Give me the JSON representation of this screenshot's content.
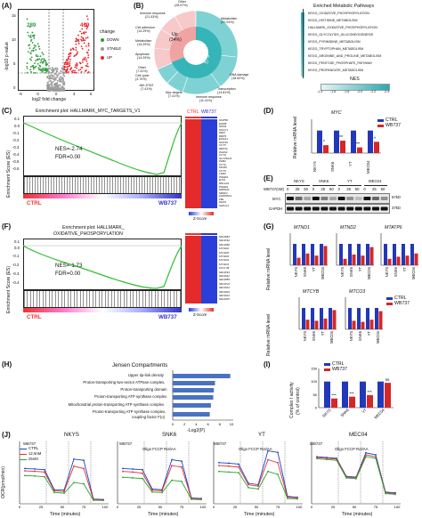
{
  "panel_letters": {
    "A": "(A)",
    "B": "(B)",
    "C": "(C)",
    "D": "(D)",
    "E": "(E)",
    "F": "(F)",
    "G": "(G)",
    "H": "(H)",
    "I": "(I)",
    "J": "(J)"
  },
  "volcano": {
    "ylabel": "-log10 p-value",
    "xlabel": "log2 fold change",
    "down_count": "289",
    "up_count": "469",
    "legend_title": "change",
    "legend": [
      "DOWN",
      "STABLE",
      "UP"
    ],
    "xticks": [
      "-6",
      "-3",
      "0",
      "3",
      "6"
    ],
    "yticks": [
      "0",
      "5",
      "10",
      "15"
    ],
    "colors": {
      "down": "#2e9c3a",
      "stable": "#9a9a9a",
      "up": "#e8262a"
    }
  },
  "donut": {
    "inner": [
      {
        "name": "Up",
        "pct": "(34%)"
      },
      {
        "name": "Down",
        "pct": "(66%)"
      }
    ],
    "outer_labels": [
      {
        "name": "Other",
        "pct": "(28.57%)"
      },
      {
        "name": "Immune response",
        "pct": "(21.43%)"
      },
      {
        "name": "Cell adhesion",
        "pct": "(14.29%)"
      },
      {
        "name": "Metabolism",
        "pct": "(14.29%)"
      },
      {
        "name": "Apoptosis",
        "pct": "(14.29%)"
      },
      {
        "name": "Other",
        "pct": "(7.41%)"
      },
      {
        "name": "Cell cycle",
        "pct": "(3.70%)"
      },
      {
        "name": "JAK-STAT",
        "pct": "(7.41%)"
      },
      {
        "name": "Myc targets",
        "pct": "(7.41%)"
      },
      {
        "name": "Metabolism",
        "pct": "(37.04%)"
      },
      {
        "name": "DNA damage",
        "pct": "(18.52%)"
      },
      {
        "name": "Transcription",
        "pct": "(14.81%)"
      },
      {
        "name": "Immune response",
        "pct": "(11.11%)"
      }
    ],
    "colors": {
      "up": "#f0a3a3",
      "down": "#35b5b8"
    }
  },
  "enriched": {
    "title": "Enriched Metabolic Pathways",
    "items": [
      "KEGG_OXIDATIVE_PHOSPHORYLATION",
      "KEGG_HISTIDINE_METABOLISM",
      "HALLMARK_OXIDATIVE_PHOSPHORYLATION",
      "KEGG_GLYCOLYSIS_GLUCONEOGENESIS",
      "KEGG_PYRIMIDINE_METABOLISM",
      "KEGG_TRYPTOPHAN_METABOLISM",
      "KEGG_ARGININE_AND_PROLINE_METABOLISM",
      "KEGG_PENTOSE_PHOSPHATE_PATHWAY",
      "KEGG_PROPANOATE_METABOLISM"
    ],
    "nes_label": "NES",
    "nes_ticks": [
      "-1.4",
      "-1.6",
      "-1.8",
      "-2.0",
      "-2.2",
      "-2.4"
    ]
  },
  "gsea_c": {
    "title": "Enrichment plot: HALLMARK_MYC_TARGETS_V1",
    "ylabel": "Enrichment Score (ES)",
    "nes": "NES=-2.74",
    "fdr": "FDR=0.00",
    "left": "CTRL",
    "right": "WB737",
    "yticks": [
      "0.1",
      "0.0",
      "-0.1",
      "-0.2",
      "-0.3",
      "-0.4",
      "-0.5",
      "-0.6"
    ]
  },
  "heat_c": {
    "header_ctrl": "CTRL",
    "header_wb": "WB737",
    "genes": [
      "NOP56",
      "EIF4B",
      "NPM1",
      "NOLC1",
      "SRM",
      "RRP9",
      "EIF4A1",
      "NOP16",
      "CCT7",
      "RRP12",
      "PA2G4",
      "CCT4",
      "SLC25A11",
      "PHB2",
      "CCT2",
      "MCM5",
      "CCT3",
      "LSM2",
      "PSMD1",
      "ETF1",
      "RSL1D1",
      "PSMD1",
      "IMPDH2",
      "SRSF2",
      "HNRNPA1",
      "FBL",
      "NHP2",
      "NAP1L1"
    ],
    "zscore": "Z-Score",
    "zticks": [
      "2",
      "0",
      "-2"
    ]
  },
  "gsea_f": {
    "title": "Enrichment plot: HALLMARK_",
    "title2": "OXIDATIVE_PHOSPORYLATION",
    "ylabel": "Enrichment Score (ES)",
    "nes": "NES=-1.73",
    "fdr": "FDR=0.00",
    "left": "CTRL",
    "right": "WB737",
    "yticks": [
      "0.1",
      "0.0",
      "-0.1",
      "-0.2",
      "-0.3",
      "-0.4"
    ]
  },
  "heat_f": {
    "genes": [
      "NDUFB1",
      "NDUFS2",
      "NDUFB2",
      "MT-ND2",
      "MT-ND5",
      "MT-ND3",
      "MT-ND4",
      "MT-ND1",
      "MT-CYB",
      "NDUFS1",
      "NDUFA2",
      "NDUFB5",
      "NDUFV2",
      "NDUFA4",
      "NDUFA9",
      "NDUFA3",
      "NDUFA5"
    ],
    "zscore": "Z-Score",
    "zticks": [
      "2",
      "0",
      "-2"
    ]
  },
  "panel_d": {
    "gene": "MYC",
    "ylabel": "Relative mRNA level",
    "legend": [
      "CTRL",
      "WB737"
    ],
    "categories": [
      "NKYS",
      "SNK6",
      "YT",
      "MEC04"
    ],
    "yticks": [
      "0",
      "0.5",
      "1.0",
      "1.5"
    ],
    "sig": [
      "*",
      "**",
      "**",
      "*"
    ]
  },
  "panel_e": {
    "rows": [
      "MYC",
      "GAPDH"
    ],
    "cells": [
      "NKYS",
      "SNK6",
      "YT",
      "MEC04"
    ],
    "dose_label": "WB737(nM)",
    "doses": [
      "0",
      "25",
      "50",
      "0",
      "25",
      "50",
      "0",
      "25",
      "50",
      "0",
      "25",
      "50"
    ],
    "kd": [
      "57kD",
      "37kD"
    ]
  },
  "panel_g": {
    "genes_top": [
      "MTND1",
      "MTND2",
      "MTATP6"
    ],
    "genes_bottom": [
      "MTCYB",
      "MTCO3"
    ],
    "ylabel": "Relative mRNA level",
    "categories": [
      "NKYS",
      "SNK6",
      "YT",
      "MEC04"
    ],
    "legend": [
      "CTRL",
      "WB737"
    ],
    "yticks": [
      "0",
      "0.5",
      "1.0",
      "1.5"
    ]
  },
  "panel_h": {
    "title": "Jensen Compartments",
    "terms": [
      "Upper tip-link density",
      "Proton-transporting two-sector ATPase complex,",
      "Proton-transporting domain",
      "Proton-transporting ATP synthase complex",
      "Mitochondrial proton-transporting ATP synthase complex",
      "Proton-transporting ATP synthase complex,",
      "coupling factor F(o)"
    ],
    "xlabel": "-Log2(P)",
    "xticks": [
      "0",
      "2",
      "4",
      "6",
      "8",
      "10"
    ],
    "values": [
      9.8,
      7.2,
      7.0,
      6.9,
      6.5,
      6.3
    ]
  },
  "panel_i": {
    "ylabel": "Complex I activity",
    "ylabel2": "(% of control)",
    "legend": [
      "CTRL",
      "WB737"
    ],
    "categories": [
      "NKYS",
      "SNK6",
      "YT",
      "MEC04"
    ],
    "yticks": [
      "0",
      "50",
      "100",
      "150"
    ],
    "sig": [
      "***",
      "***",
      "***",
      "ns"
    ],
    "ctrl": [
      100,
      100,
      100,
      100
    ],
    "wb": [
      35,
      42,
      48,
      95
    ]
  },
  "panel_j": {
    "titles": [
      "NKYS",
      "SNK6",
      "YT",
      "MEC04"
    ],
    "ylabel": "OCR(pmol/min)",
    "xlabel": "Time (minutes)",
    "legend_title": "WB737",
    "legend": [
      "CTRL",
      "12.5nM",
      "25nM"
    ],
    "injections": "Oligo FCCP Rot/AA",
    "xticks": [
      "0",
      "25",
      "50",
      "75",
      "100"
    ],
    "yticks_nkys": [
      "0",
      "50",
      "100",
      "150",
      "200",
      "250"
    ],
    "yticks_snk6": [
      "0",
      "50",
      "100",
      "150",
      "200"
    ],
    "yticks_yt": [
      "0",
      "50",
      "100",
      "150",
      "200"
    ],
    "yticks_mec": [
      "0",
      "50",
      "100",
      "150"
    ],
    "colors": {
      "ctrl": "#1c3fc7",
      "low": "#e03030",
      "high": "#29a52e"
    }
  }
}
